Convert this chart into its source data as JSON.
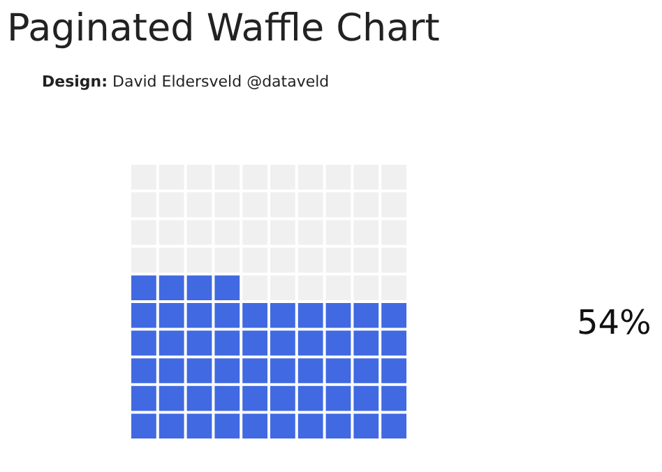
{
  "chart_data": {
    "type": "other",
    "title": "Paginated Waffle Chart",
    "subtitle": "Design: David Eldersveld @dataveld",
    "values": [
      54
    ],
    "value_labels": [
      "54%"
    ],
    "color": "#4169e1"
  }
}
